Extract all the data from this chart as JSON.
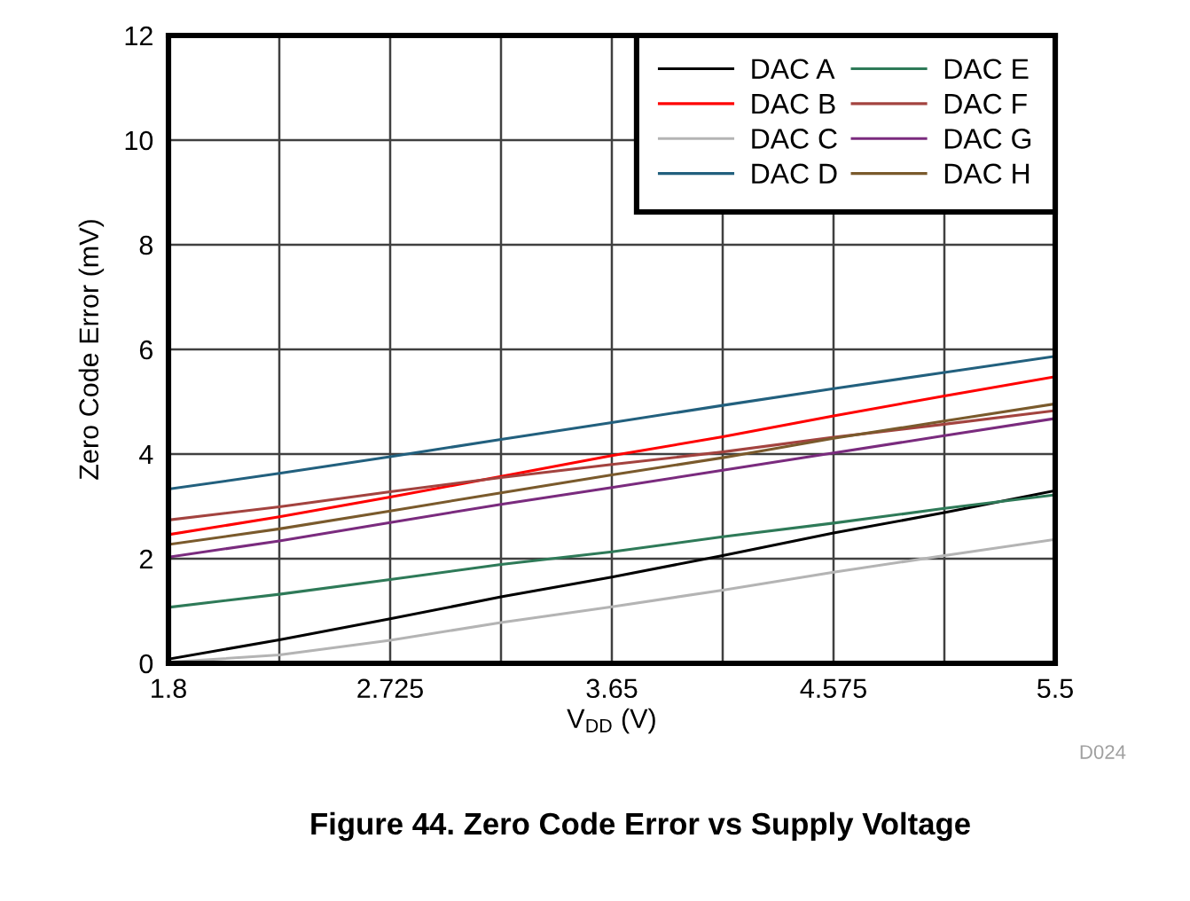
{
  "chart_data": {
    "type": "line",
    "title": "Figure 44. Zero Code Error vs Supply Voltage",
    "xlabel": "V$_{DD}$ (V)",
    "ylabel": "Zero Code Error (mV)",
    "annotations": [
      "D024"
    ],
    "x": [
      1.8,
      2.2625,
      2.725,
      3.1875,
      3.65,
      4.1125,
      4.575,
      5.0375,
      5.5
    ],
    "series": [
      {
        "name": "DAC A",
        "color": "#000000",
        "values": [
          0.08,
          0.45,
          0.85,
          1.27,
          1.65,
          2.06,
          2.49,
          2.88,
          3.3
        ]
      },
      {
        "name": "DAC B",
        "color": "#ff0000",
        "values": [
          2.46,
          2.8,
          3.18,
          3.57,
          3.97,
          4.33,
          4.73,
          5.11,
          5.48
        ]
      },
      {
        "name": "DAC C",
        "color": "#b4b4b4",
        "values": [
          0.02,
          0.16,
          0.44,
          0.78,
          1.08,
          1.4,
          1.74,
          2.06,
          2.37
        ]
      },
      {
        "name": "DAC D",
        "color": "#22607e",
        "values": [
          3.33,
          3.63,
          3.95,
          4.28,
          4.6,
          4.93,
          5.25,
          5.56,
          5.87
        ]
      },
      {
        "name": "DAC E",
        "color": "#2e7a58",
        "values": [
          1.07,
          1.32,
          1.6,
          1.89,
          2.13,
          2.42,
          2.68,
          2.96,
          3.22
        ]
      },
      {
        "name": "DAC F",
        "color": "#a3433f",
        "values": [
          2.74,
          2.99,
          3.28,
          3.55,
          3.8,
          4.04,
          4.32,
          4.57,
          4.83
        ]
      },
      {
        "name": "DAC G",
        "color": "#7a2b7e",
        "values": [
          2.03,
          2.34,
          2.69,
          3.04,
          3.36,
          3.69,
          4.02,
          4.35,
          4.68
        ]
      },
      {
        "name": "DAC H",
        "color": "#7a5a2c",
        "values": [
          2.27,
          2.57,
          2.91,
          3.26,
          3.6,
          3.93,
          4.3,
          4.63,
          4.96
        ]
      }
    ],
    "xlim": [
      1.8,
      5.5
    ],
    "xticks": [
      1.8,
      {
        "value": 2.2625,
        "label": null
      },
      2.725,
      {
        "value": 3.1875,
        "label": null
      },
      3.65,
      {
        "value": 4.1125,
        "label": null
      },
      4.575,
      {
        "value": 5.0375,
        "label": null
      },
      5.5
    ],
    "ylim": [
      0,
      12
    ],
    "yticks": [
      0,
      2,
      4,
      6,
      8,
      10,
      12
    ],
    "grid": true,
    "legend": "top right",
    "line_style": "solid",
    "marker": "none"
  }
}
